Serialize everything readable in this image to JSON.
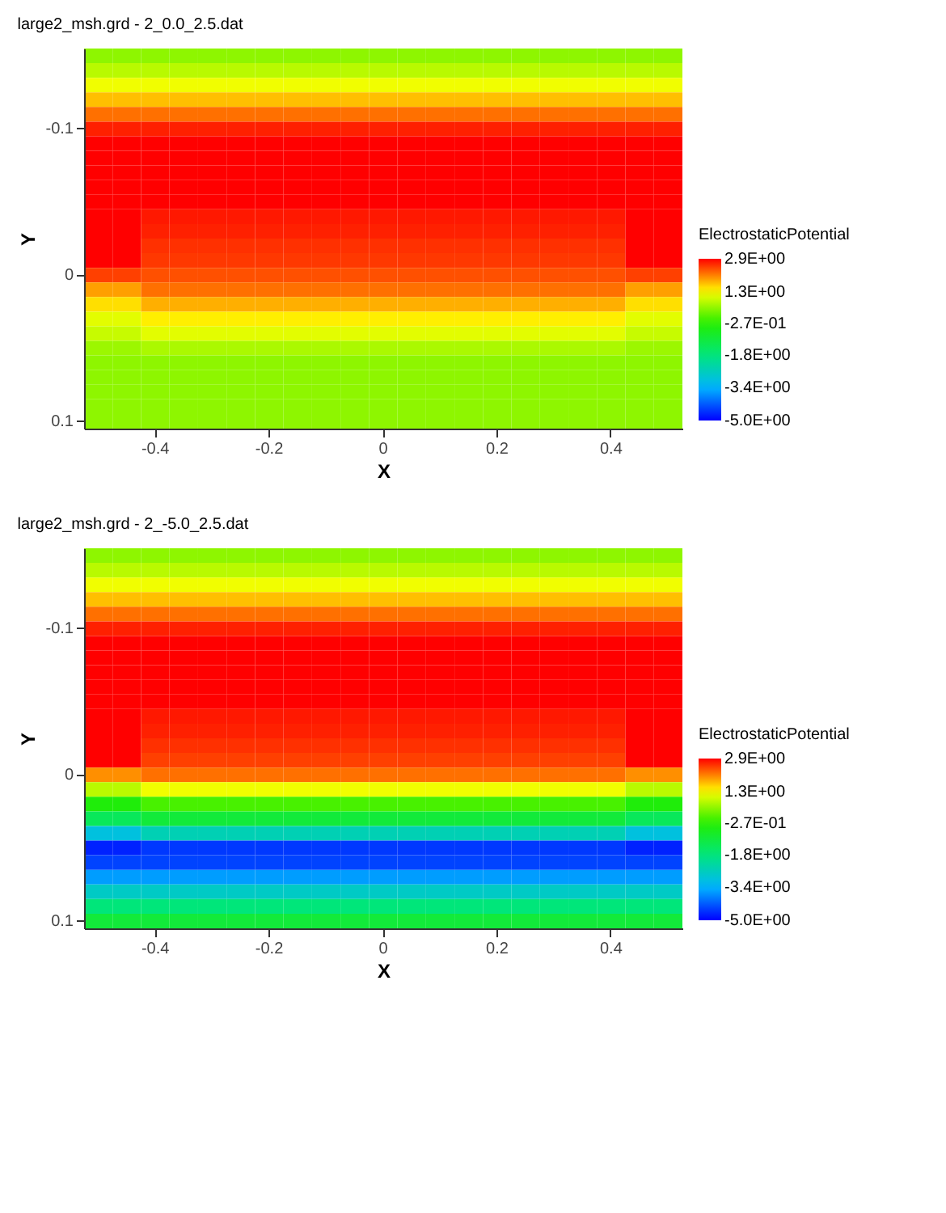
{
  "chart_data": [
    {
      "type": "heatmap",
      "title": "large2_msh.grd - 2_0.0_2.5.dat",
      "xlabel": "X",
      "ylabel": "Y",
      "legend_title": "ElectrostaticPotential",
      "categories": [
        null,
        null,
        "-0.4",
        null,
        null,
        null,
        "-0.2",
        null,
        null,
        null,
        "0",
        null,
        null,
        null,
        "0.2",
        null,
        null,
        null,
        "0.4",
        null,
        null
      ],
      "y_categories": [
        null,
        null,
        null,
        null,
        null,
        "-0.1",
        null,
        null,
        null,
        null,
        null,
        null,
        null,
        null,
        null,
        "0",
        null,
        null,
        null,
        null,
        null,
        null,
        null,
        null,
        null,
        "0.1"
      ],
      "cells": [
        [
          0.5,
          0.5,
          0.5,
          0.5,
          0.5,
          0.5,
          0.5,
          0.5,
          0.5,
          0.5,
          0.5,
          0.5,
          0.5,
          0.5,
          0.5,
          0.5,
          0.5,
          0.5,
          0.5,
          0.5,
          0.5
        ],
        [
          0.8,
          0.8,
          0.8,
          0.8,
          0.8,
          0.8,
          0.8,
          0.8,
          0.8,
          0.8,
          0.8,
          0.8,
          0.8,
          0.8,
          0.8,
          0.8,
          0.8,
          0.8,
          0.8,
          0.8,
          0.8
        ],
        [
          1.2,
          1.2,
          1.2,
          1.2,
          1.2,
          1.2,
          1.2,
          1.2,
          1.2,
          1.2,
          1.2,
          1.2,
          1.2,
          1.2,
          1.2,
          1.2,
          1.2,
          1.2,
          1.2,
          1.2,
          1.2
        ],
        [
          1.7,
          1.7,
          1.7,
          1.7,
          1.7,
          1.7,
          1.7,
          1.7,
          1.7,
          1.7,
          1.7,
          1.7,
          1.7,
          1.7,
          1.7,
          1.7,
          1.7,
          1.7,
          1.7,
          1.7,
          1.7
        ],
        [
          2.2,
          2.2,
          2.2,
          2.2,
          2.2,
          2.2,
          2.2,
          2.2,
          2.2,
          2.2,
          2.2,
          2.2,
          2.2,
          2.2,
          2.2,
          2.2,
          2.2,
          2.2,
          2.2,
          2.2,
          2.2
        ],
        [
          2.7,
          2.7,
          2.7,
          2.7,
          2.7,
          2.7,
          2.7,
          2.7,
          2.7,
          2.7,
          2.7,
          2.7,
          2.7,
          2.7,
          2.7,
          2.7,
          2.7,
          2.7,
          2.7,
          2.7,
          2.7
        ],
        [
          2.9,
          2.9,
          2.9,
          2.9,
          2.9,
          2.9,
          2.9,
          2.9,
          2.9,
          2.9,
          2.9,
          2.9,
          2.9,
          2.9,
          2.9,
          2.9,
          2.9,
          2.9,
          2.9,
          2.9,
          2.9
        ],
        [
          2.9,
          2.9,
          2.9,
          2.9,
          2.9,
          2.9,
          2.9,
          2.9,
          2.9,
          2.9,
          2.9,
          2.9,
          2.9,
          2.9,
          2.9,
          2.9,
          2.9,
          2.9,
          2.9,
          2.9,
          2.9
        ],
        [
          2.9,
          2.9,
          2.9,
          2.9,
          2.9,
          2.9,
          2.9,
          2.9,
          2.9,
          2.9,
          2.9,
          2.9,
          2.9,
          2.9,
          2.9,
          2.9,
          2.9,
          2.9,
          2.9,
          2.9,
          2.9
        ],
        [
          2.9,
          2.9,
          2.9,
          2.9,
          2.9,
          2.9,
          2.9,
          2.9,
          2.9,
          2.9,
          2.9,
          2.9,
          2.9,
          2.9,
          2.9,
          2.9,
          2.9,
          2.9,
          2.9,
          2.9,
          2.9
        ],
        [
          2.9,
          2.9,
          2.9,
          2.9,
          2.9,
          2.9,
          2.9,
          2.9,
          2.9,
          2.9,
          2.9,
          2.9,
          2.9,
          2.9,
          2.9,
          2.9,
          2.9,
          2.9,
          2.9,
          2.9,
          2.9
        ],
        [
          2.9,
          2.9,
          2.75,
          2.75,
          2.75,
          2.75,
          2.75,
          2.75,
          2.75,
          2.75,
          2.75,
          2.75,
          2.75,
          2.75,
          2.75,
          2.75,
          2.75,
          2.75,
          2.75,
          2.9,
          2.9
        ],
        [
          2.9,
          2.9,
          2.7,
          2.7,
          2.7,
          2.7,
          2.7,
          2.7,
          2.7,
          2.7,
          2.7,
          2.7,
          2.7,
          2.7,
          2.7,
          2.7,
          2.7,
          2.7,
          2.7,
          2.9,
          2.9
        ],
        [
          2.9,
          2.9,
          2.6,
          2.6,
          2.6,
          2.6,
          2.6,
          2.6,
          2.6,
          2.6,
          2.6,
          2.6,
          2.6,
          2.6,
          2.6,
          2.6,
          2.6,
          2.6,
          2.6,
          2.9,
          2.9
        ],
        [
          2.9,
          2.9,
          2.55,
          2.55,
          2.55,
          2.55,
          2.55,
          2.55,
          2.55,
          2.55,
          2.55,
          2.55,
          2.55,
          2.55,
          2.55,
          2.55,
          2.55,
          2.55,
          2.55,
          2.9,
          2.9
        ],
        [
          2.5,
          2.5,
          2.4,
          2.4,
          2.4,
          2.4,
          2.4,
          2.4,
          2.4,
          2.4,
          2.4,
          2.4,
          2.4,
          2.4,
          2.4,
          2.4,
          2.4,
          2.4,
          2.4,
          2.5,
          2.5
        ],
        [
          1.9,
          1.9,
          2.2,
          2.2,
          2.2,
          2.2,
          2.2,
          2.2,
          2.2,
          2.2,
          2.2,
          2.2,
          2.2,
          2.2,
          2.2,
          2.2,
          2.2,
          2.2,
          2.2,
          1.9,
          1.9
        ],
        [
          1.5,
          1.5,
          1.8,
          1.8,
          1.8,
          1.8,
          1.8,
          1.8,
          1.8,
          1.8,
          1.8,
          1.8,
          1.8,
          1.8,
          1.8,
          1.8,
          1.8,
          1.8,
          1.8,
          1.5,
          1.5
        ],
        [
          1.1,
          1.1,
          1.4,
          1.4,
          1.4,
          1.4,
          1.4,
          1.4,
          1.4,
          1.4,
          1.4,
          1.4,
          1.4,
          1.4,
          1.4,
          1.4,
          1.4,
          1.4,
          1.4,
          1.1,
          1.1
        ],
        [
          0.9,
          0.9,
          1.1,
          1.1,
          1.1,
          1.1,
          1.1,
          1.1,
          1.1,
          1.1,
          1.1,
          1.1,
          1.1,
          1.1,
          1.1,
          1.1,
          1.1,
          1.1,
          1.1,
          0.9,
          0.9
        ],
        [
          0.6,
          0.6,
          0.7,
          0.7,
          0.7,
          0.7,
          0.7,
          0.7,
          0.7,
          0.7,
          0.7,
          0.7,
          0.7,
          0.7,
          0.7,
          0.7,
          0.7,
          0.7,
          0.7,
          0.6,
          0.6
        ],
        [
          0.5,
          0.5,
          0.5,
          0.5,
          0.5,
          0.5,
          0.5,
          0.5,
          0.5,
          0.5,
          0.5,
          0.5,
          0.5,
          0.5,
          0.5,
          0.5,
          0.5,
          0.5,
          0.5,
          0.5,
          0.5
        ],
        [
          0.5,
          0.5,
          0.5,
          0.5,
          0.5,
          0.5,
          0.5,
          0.5,
          0.5,
          0.5,
          0.5,
          0.5,
          0.5,
          0.5,
          0.5,
          0.5,
          0.5,
          0.5,
          0.5,
          0.5,
          0.5
        ],
        [
          0.5,
          0.5,
          0.5,
          0.5,
          0.5,
          0.5,
          0.5,
          0.5,
          0.5,
          0.5,
          0.5,
          0.5,
          0.5,
          0.5,
          0.5,
          0.5,
          0.5,
          0.5,
          0.5,
          0.5,
          0.5
        ],
        [
          0.5,
          0.5,
          0.5,
          0.5,
          0.5,
          0.5,
          0.5,
          0.5,
          0.5,
          0.5,
          0.5,
          0.5,
          0.5,
          0.5,
          0.5,
          0.5,
          0.5,
          0.5,
          0.5,
          0.5,
          0.5
        ],
        [
          0.5,
          0.5,
          0.5,
          0.5,
          0.5,
          0.5,
          0.5,
          0.5,
          0.5,
          0.5,
          0.5,
          0.5,
          0.5,
          0.5,
          0.5,
          0.5,
          0.5,
          0.5,
          0.5,
          0.5,
          0.5
        ]
      ],
      "clim": [
        -5.0,
        2.9
      ],
      "cticks": [
        {
          "value": 2.9,
          "label": "2.9E+00"
        },
        {
          "value": 1.3,
          "label": "1.3E+00"
        },
        {
          "value": -0.27,
          "label": "-2.7E-01"
        },
        {
          "value": -1.8,
          "label": "-1.8E+00"
        },
        {
          "value": -3.4,
          "label": "-3.4E+00"
        },
        {
          "value": -5.0,
          "label": "-5.0E+00"
        }
      ]
    },
    {
      "type": "heatmap",
      "title": "large2_msh.grd - 2_-5.0_2.5.dat",
      "xlabel": "X",
      "ylabel": "Y",
      "legend_title": "ElectrostaticPotential",
      "categories": [
        null,
        null,
        "-0.4",
        null,
        null,
        null,
        "-0.2",
        null,
        null,
        null,
        "0",
        null,
        null,
        null,
        "0.2",
        null,
        null,
        null,
        "0.4",
        null,
        null
      ],
      "y_categories": [
        null,
        null,
        null,
        null,
        null,
        "-0.1",
        null,
        null,
        null,
        null,
        null,
        null,
        null,
        null,
        null,
        "0",
        null,
        null,
        null,
        null,
        null,
        null,
        null,
        null,
        null,
        "0.1"
      ],
      "cells": [
        [
          0.5,
          0.5,
          0.5,
          0.5,
          0.5,
          0.5,
          0.5,
          0.5,
          0.5,
          0.5,
          0.5,
          0.5,
          0.5,
          0.5,
          0.5,
          0.5,
          0.5,
          0.5,
          0.5,
          0.5,
          0.5
        ],
        [
          0.8,
          0.8,
          0.8,
          0.8,
          0.8,
          0.8,
          0.8,
          0.8,
          0.8,
          0.8,
          0.8,
          0.8,
          0.8,
          0.8,
          0.8,
          0.8,
          0.8,
          0.8,
          0.8,
          0.8,
          0.8
        ],
        [
          1.2,
          1.2,
          1.2,
          1.2,
          1.2,
          1.2,
          1.2,
          1.2,
          1.2,
          1.2,
          1.2,
          1.2,
          1.2,
          1.2,
          1.2,
          1.2,
          1.2,
          1.2,
          1.2,
          1.2,
          1.2
        ],
        [
          1.7,
          1.7,
          1.7,
          1.7,
          1.7,
          1.7,
          1.7,
          1.7,
          1.7,
          1.7,
          1.7,
          1.7,
          1.7,
          1.7,
          1.7,
          1.7,
          1.7,
          1.7,
          1.7,
          1.7,
          1.7
        ],
        [
          2.2,
          2.2,
          2.2,
          2.2,
          2.2,
          2.2,
          2.2,
          2.2,
          2.2,
          2.2,
          2.2,
          2.2,
          2.2,
          2.2,
          2.2,
          2.2,
          2.2,
          2.2,
          2.2,
          2.2,
          2.2
        ],
        [
          2.7,
          2.7,
          2.7,
          2.7,
          2.7,
          2.7,
          2.7,
          2.7,
          2.7,
          2.7,
          2.7,
          2.7,
          2.7,
          2.7,
          2.7,
          2.7,
          2.7,
          2.7,
          2.7,
          2.7,
          2.7
        ],
        [
          2.9,
          2.9,
          2.9,
          2.9,
          2.9,
          2.9,
          2.9,
          2.9,
          2.9,
          2.9,
          2.9,
          2.9,
          2.9,
          2.9,
          2.9,
          2.9,
          2.9,
          2.9,
          2.9,
          2.9,
          2.9
        ],
        [
          2.9,
          2.9,
          2.9,
          2.9,
          2.9,
          2.9,
          2.9,
          2.9,
          2.9,
          2.9,
          2.9,
          2.9,
          2.9,
          2.9,
          2.9,
          2.9,
          2.9,
          2.9,
          2.9,
          2.9,
          2.9
        ],
        [
          2.9,
          2.9,
          2.9,
          2.9,
          2.9,
          2.9,
          2.9,
          2.9,
          2.9,
          2.9,
          2.9,
          2.9,
          2.9,
          2.9,
          2.9,
          2.9,
          2.9,
          2.9,
          2.9,
          2.9,
          2.9
        ],
        [
          2.9,
          2.9,
          2.9,
          2.9,
          2.9,
          2.9,
          2.9,
          2.9,
          2.9,
          2.9,
          2.9,
          2.9,
          2.9,
          2.9,
          2.9,
          2.9,
          2.9,
          2.9,
          2.9,
          2.9,
          2.9
        ],
        [
          2.9,
          2.9,
          2.9,
          2.9,
          2.9,
          2.9,
          2.9,
          2.9,
          2.9,
          2.9,
          2.9,
          2.9,
          2.9,
          2.9,
          2.9,
          2.9,
          2.9,
          2.9,
          2.9,
          2.9,
          2.9
        ],
        [
          2.9,
          2.9,
          2.75,
          2.75,
          2.75,
          2.75,
          2.75,
          2.75,
          2.75,
          2.75,
          2.75,
          2.75,
          2.75,
          2.75,
          2.75,
          2.75,
          2.75,
          2.75,
          2.75,
          2.9,
          2.9
        ],
        [
          2.9,
          2.9,
          2.7,
          2.7,
          2.7,
          2.7,
          2.7,
          2.7,
          2.7,
          2.7,
          2.7,
          2.7,
          2.7,
          2.7,
          2.7,
          2.7,
          2.7,
          2.7,
          2.7,
          2.9,
          2.9
        ],
        [
          2.9,
          2.9,
          2.6,
          2.6,
          2.6,
          2.6,
          2.6,
          2.6,
          2.6,
          2.6,
          2.6,
          2.6,
          2.6,
          2.6,
          2.6,
          2.6,
          2.6,
          2.6,
          2.6,
          2.9,
          2.9
        ],
        [
          2.9,
          2.9,
          2.5,
          2.5,
          2.5,
          2.5,
          2.5,
          2.5,
          2.5,
          2.5,
          2.5,
          2.5,
          2.5,
          2.5,
          2.5,
          2.5,
          2.5,
          2.5,
          2.5,
          2.9,
          2.9
        ],
        [
          2.0,
          2.0,
          2.2,
          2.2,
          2.2,
          2.2,
          2.2,
          2.2,
          2.2,
          2.2,
          2.2,
          2.2,
          2.2,
          2.2,
          2.2,
          2.2,
          2.2,
          2.2,
          2.2,
          2.0,
          2.0
        ],
        [
          0.8,
          0.8,
          1.2,
          1.2,
          1.2,
          1.2,
          1.2,
          1.2,
          1.2,
          1.2,
          1.2,
          1.2,
          1.2,
          1.2,
          1.2,
          1.2,
          1.2,
          1.2,
          1.2,
          0.8,
          0.8
        ],
        [
          -0.4,
          -0.4,
          0.0,
          0.0,
          0.0,
          0.0,
          0.0,
          0.0,
          0.0,
          0.0,
          0.0,
          0.0,
          0.0,
          0.0,
          0.0,
          0.0,
          0.0,
          0.0,
          0.0,
          -0.4,
          -0.4
        ],
        [
          -1.4,
          -1.4,
          -1.0,
          -1.0,
          -1.0,
          -1.0,
          -1.0,
          -1.0,
          -1.0,
          -1.0,
          -1.0,
          -1.0,
          -1.0,
          -1.0,
          -1.0,
          -1.0,
          -1.0,
          -1.0,
          -1.0,
          -1.4,
          -1.4
        ],
        [
          -3.0,
          -3.0,
          -2.5,
          -2.5,
          -2.5,
          -2.5,
          -2.5,
          -2.5,
          -2.5,
          -2.5,
          -2.5,
          -2.5,
          -2.5,
          -2.5,
          -2.5,
          -2.5,
          -2.5,
          -2.5,
          -2.5,
          -3.0,
          -3.0
        ],
        [
          -4.7,
          -4.7,
          -4.5,
          -4.5,
          -4.5,
          -4.5,
          -4.5,
          -4.5,
          -4.5,
          -4.5,
          -4.5,
          -4.5,
          -4.5,
          -4.5,
          -4.5,
          -4.5,
          -4.5,
          -4.5,
          -4.5,
          -4.7,
          -4.7
        ],
        [
          -4.4,
          -4.4,
          -4.4,
          -4.4,
          -4.4,
          -4.4,
          -4.4,
          -4.4,
          -4.4,
          -4.4,
          -4.4,
          -4.4,
          -4.4,
          -4.4,
          -4.4,
          -4.4,
          -4.4,
          -4.4,
          -4.4,
          -4.4,
          -4.4
        ],
        [
          -3.6,
          -3.6,
          -3.6,
          -3.6,
          -3.6,
          -3.6,
          -3.6,
          -3.6,
          -3.6,
          -3.6,
          -3.6,
          -3.6,
          -3.6,
          -3.6,
          -3.6,
          -3.6,
          -3.6,
          -3.6,
          -3.6,
          -3.6,
          -3.6
        ],
        [
          -2.7,
          -2.7,
          -2.7,
          -2.7,
          -2.7,
          -2.7,
          -2.7,
          -2.7,
          -2.7,
          -2.7,
          -2.7,
          -2.7,
          -2.7,
          -2.7,
          -2.7,
          -2.7,
          -2.7,
          -2.7,
          -2.7,
          -2.7,
          -2.7
        ],
        [
          -1.8,
          -1.8,
          -1.8,
          -1.8,
          -1.8,
          -1.8,
          -1.8,
          -1.8,
          -1.8,
          -1.8,
          -1.8,
          -1.8,
          -1.8,
          -1.8,
          -1.8,
          -1.8,
          -1.8,
          -1.8,
          -1.8,
          -1.8,
          -1.8
        ],
        [
          -1.0,
          -1.0,
          -1.0,
          -1.0,
          -1.0,
          -1.0,
          -1.0,
          -1.0,
          -1.0,
          -1.0,
          -1.0,
          -1.0,
          -1.0,
          -1.0,
          -1.0,
          -1.0,
          -1.0,
          -1.0,
          -1.0,
          -1.0,
          -1.0
        ]
      ],
      "clim": [
        -5.0,
        2.9
      ],
      "cticks": [
        {
          "value": 2.9,
          "label": "2.9E+00"
        },
        {
          "value": 1.3,
          "label": "1.3E+00"
        },
        {
          "value": -0.27,
          "label": "-2.7E-01"
        },
        {
          "value": -1.8,
          "label": "-1.8E+00"
        },
        {
          "value": -3.4,
          "label": "-3.4E+00"
        },
        {
          "value": -5.0,
          "label": "-5.0E+00"
        }
      ]
    }
  ]
}
